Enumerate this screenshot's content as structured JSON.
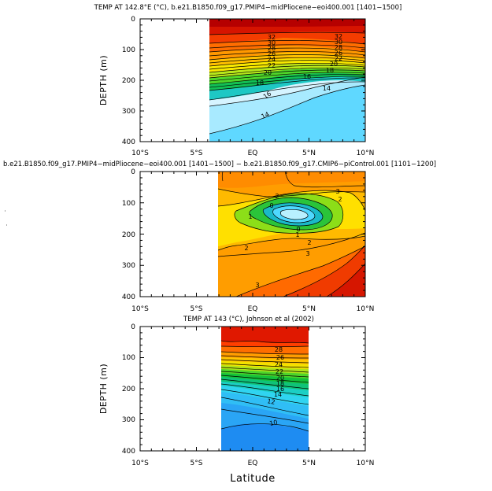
{
  "chart_data": [
    {
      "type": "filled-contour",
      "title": "TEMP AT 142.8°E (°C), b.e21.B1850.f09_g17.PMIP4−midPliocene−eoi400.001  [1401−1500]",
      "xlabel": "",
      "ylabel": "DEPTH (m)",
      "xlim": [
        -10,
        10
      ],
      "ylim": [
        400,
        0
      ],
      "x_ticks": [
        -10,
        -5,
        0,
        5,
        10
      ],
      "x_tick_labels": [
        "10°S",
        "5°S",
        "EQ",
        "5°N",
        "10°N"
      ],
      "y_ticks": [
        0,
        100,
        200,
        300,
        400
      ],
      "y_tick_labels": [
        "0",
        "100",
        "200",
        "300",
        "400"
      ],
      "data_extent_x": [
        -3.6,
        10
      ],
      "contour_labels": [
        "32",
        "32",
        "30",
        "30",
        "28",
        "28",
        "26",
        "26",
        "24",
        "22",
        "22",
        "20",
        "20",
        "18",
        "18",
        "16",
        "16",
        "14",
        "14"
      ]
    },
    {
      "type": "filled-contour",
      "title": "b.e21.B1850.f09_g17.PMIP4−midPliocene−eoi400.001  [1401−1500]  −  b.e21.B1850.f09_g17.CMIP6−piControl.001  [1101−1200]",
      "xlabel": "",
      "ylabel": "",
      "xlim": [
        -10,
        10
      ],
      "ylim": [
        400,
        0
      ],
      "x_ticks": [
        -10,
        -5,
        0,
        5,
        10
      ],
      "x_tick_labels": [
        "10°S",
        "5°S",
        "EQ",
        "5°N",
        "10°N"
      ],
      "y_ticks": [
        0,
        100,
        200,
        300,
        400
      ],
      "y_tick_labels": [
        "0",
        "100",
        "200",
        "300",
        "400"
      ],
      "data_extent_x": [
        -3,
        10
      ],
      "contour_labels": [
        "2",
        "3",
        "2",
        "0",
        "1",
        "0",
        "1",
        "2",
        "2",
        "3",
        "3"
      ]
    },
    {
      "type": "filled-contour",
      "title": "TEMP AT 143 (°C), Johnson et al (2002)",
      "xlabel": "Latitude",
      "ylabel": "DEPTH (m)",
      "xlim": [
        -10,
        10
      ],
      "ylim": [
        400,
        0
      ],
      "x_ticks": [
        -10,
        -5,
        0,
        5,
        10
      ],
      "x_tick_labels": [
        "10°S",
        "5°S",
        "EQ",
        "5°N",
        "10°N"
      ],
      "y_ticks": [
        0,
        100,
        200,
        300,
        400
      ],
      "y_tick_labels": [
        "0",
        "100",
        "200",
        "300",
        "400"
      ],
      "data_extent_x": [
        -2.8,
        5
      ],
      "contour_labels": [
        "28",
        "26",
        "24",
        "22",
        "20",
        "18",
        "16",
        "14",
        "12",
        "10"
      ]
    }
  ]
}
